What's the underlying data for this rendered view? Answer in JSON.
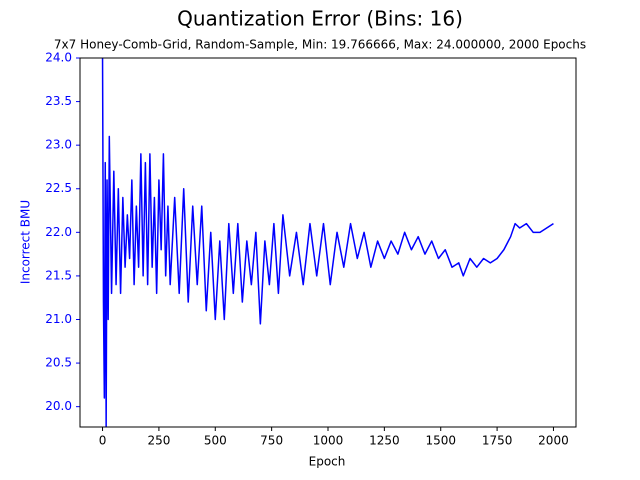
{
  "chart_data": {
    "type": "line",
    "title": "Quantization Error (Bins: 16)",
    "subtitle": "7x7 Honey-Comb-Grid, Random-Sample, Min: 19.766666, Max: 24.000000, 2000 Epochs",
    "x_label": "Epoch",
    "y_label": "Incorrect BMU",
    "y_axis_color": "#0000ff",
    "xlim": [
      -100,
      2100
    ],
    "xticks": [
      0,
      250,
      500,
      750,
      1000,
      1250,
      1500,
      1750,
      2000
    ],
    "ylim": [
      19.766666,
      24.0
    ],
    "yticks": [
      {
        "value": 20,
        "label": "20.0"
      },
      20.5,
      {
        "value": 21,
        "label": "21.0"
      },
      21.5,
      {
        "value": 22,
        "label": "22.0"
      },
      22.5,
      {
        "value": 23,
        "label": "23.0"
      },
      23.5,
      {
        "value": 24,
        "label": "24.0"
      }
    ],
    "grid": false,
    "series": [
      {
        "name": "Incorrect BMU",
        "color": "#0000ff",
        "x": [
          0,
          4,
          8,
          12,
          16,
          20,
          25,
          30,
          40,
          50,
          60,
          70,
          80,
          90,
          100,
          110,
          120,
          130,
          140,
          150,
          160,
          170,
          180,
          190,
          200,
          210,
          220,
          230,
          240,
          250,
          260,
          270,
          280,
          290,
          300,
          320,
          340,
          360,
          380,
          400,
          420,
          440,
          460,
          480,
          500,
          520,
          540,
          560,
          580,
          600,
          620,
          640,
          660,
          680,
          700,
          720,
          740,
          760,
          780,
          800,
          830,
          860,
          890,
          920,
          950,
          980,
          1010,
          1040,
          1070,
          1100,
          1130,
          1160,
          1190,
          1220,
          1250,
          1280,
          1310,
          1340,
          1370,
          1400,
          1430,
          1460,
          1490,
          1520,
          1550,
          1580,
          1600,
          1630,
          1660,
          1690,
          1720,
          1750,
          1780,
          1810,
          1830,
          1850,
          1880,
          1910,
          1940,
          1970,
          2000
        ],
        "values": [
          24.0,
          21.2,
          20.1,
          22.8,
          19.77,
          22.6,
          21.0,
          23.1,
          21.3,
          22.7,
          21.4,
          22.5,
          21.3,
          22.4,
          21.6,
          22.2,
          21.7,
          22.6,
          21.4,
          22.3,
          21.6,
          22.9,
          21.5,
          22.8,
          21.4,
          22.9,
          21.6,
          22.4,
          21.3,
          22.6,
          21.8,
          22.9,
          21.5,
          22.3,
          21.4,
          22.4,
          21.3,
          22.5,
          21.2,
          22.3,
          21.4,
          22.3,
          21.1,
          22.0,
          21.0,
          21.9,
          21.0,
          22.1,
          21.3,
          22.1,
          21.2,
          21.9,
          21.4,
          22.0,
          20.95,
          21.9,
          21.4,
          22.1,
          21.3,
          22.2,
          21.5,
          22.0,
          21.4,
          22.1,
          21.5,
          22.1,
          21.4,
          22.0,
          21.6,
          22.1,
          21.7,
          22.0,
          21.6,
          21.9,
          21.7,
          21.9,
          21.75,
          22.0,
          21.8,
          21.95,
          21.75,
          21.9,
          21.7,
          21.8,
          21.6,
          21.65,
          21.5,
          21.7,
          21.6,
          21.7,
          21.65,
          21.7,
          21.8,
          21.95,
          22.1,
          22.05,
          22.1,
          22.0,
          22.0,
          22.05,
          22.1
        ]
      }
    ]
  }
}
